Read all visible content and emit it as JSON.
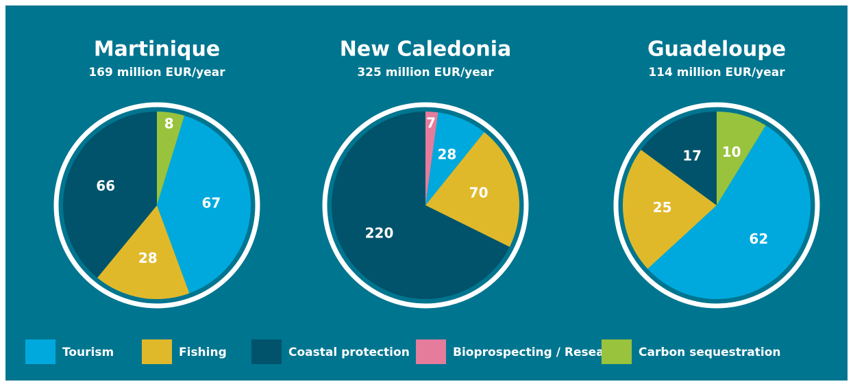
{
  "chart_data": [
    {
      "type": "pie",
      "title": "Martinique",
      "subtitle": "169 million EUR/year",
      "categories": [
        "Carbon sequestration",
        "Tourism",
        "Fishing",
        "Coastal protection"
      ],
      "values": [
        8,
        67,
        28,
        66
      ]
    },
    {
      "type": "pie",
      "title": "New Caledonia",
      "subtitle": "325 million EUR/year",
      "categories": [
        "Bioprospecting / Research",
        "Tourism",
        "Fishing",
        "Coastal protection"
      ],
      "values": [
        7,
        28,
        70,
        220
      ]
    },
    {
      "type": "pie",
      "title": "Guadeloupe",
      "subtitle": "114 million EUR/year",
      "categories": [
        "Carbon sequestration",
        "Tourism",
        "Fishing",
        "Coastal protection"
      ],
      "values": [
        10,
        62,
        25,
        17
      ]
    }
  ],
  "legend": [
    {
      "name": "Tourism",
      "color": "#00a9dd"
    },
    {
      "name": "Fishing",
      "color": "#e0b92a"
    },
    {
      "name": "Coastal protection",
      "color": "#00536b"
    },
    {
      "name": "Bioprospecting / Research",
      "color": "#e57c9c"
    },
    {
      "name": "Carbon sequestration",
      "color": "#99c33c"
    }
  ]
}
